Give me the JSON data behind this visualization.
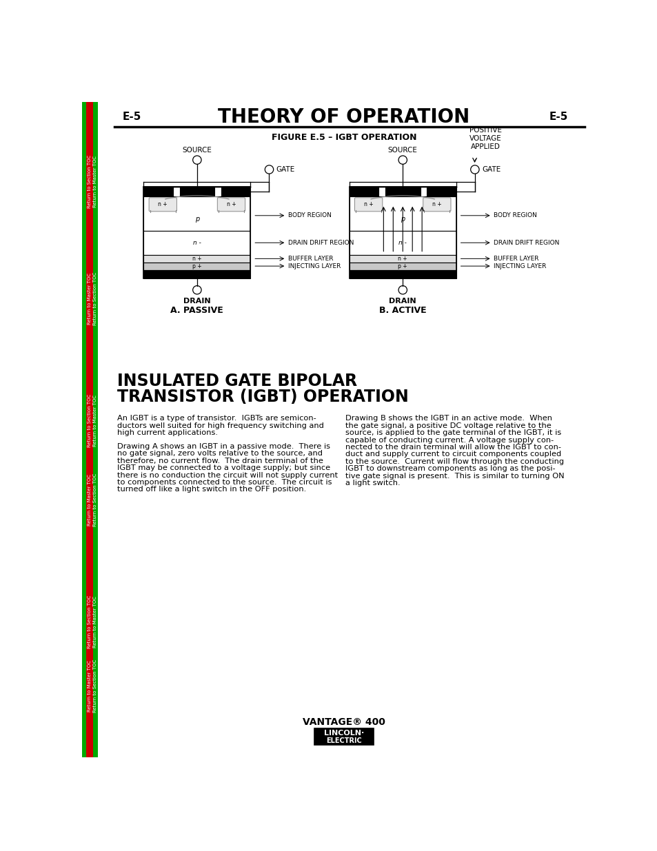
{
  "bg_color": "#ffffff",
  "page_width": 9.54,
  "page_height": 12.35,
  "header_title": "THEORY OF OPERATION",
  "header_left": "E-5",
  "header_right": "E-5",
  "figure_title": "FIGURE E.5 – IGBT OPERATION",
  "section_title_line1": "INSULATED GATE BIPOLAR",
  "section_title_line2": "TRANSISTOR (IGBT) OPERATION",
  "para1_left": "An IGBT is a type of transistor.  IGBTs are semicon-\nductors well suited for high frequency switching and\nhigh current applications.",
  "para2_left": "Drawing A shows an IGBT in a passive mode.  There is\nno gate signal, zero volts relative to the source, and\ntherefore, no current flow.  The drain terminal of the\nIGBT may be connected to a voltage supply; but since\nthere is no conduction the circuit will not supply current\nto components connected to the source.  The circuit is\nturned off like a light switch in the OFF position.",
  "para1_right": "Drawing B shows the IGBT in an active mode.  When\nthe gate signal, a positive DC voltage relative to the\nsource, is applied to the gate terminal of the IGBT, it is\ncapable of conducting current. A voltage supply con-\nnected to the drain terminal will allow the IGBT to con-\nduct and supply current to circuit components coupled\nto the source.  Current will flow through the conducting\nIGBT to downstream components as long as the posi-\ntive gate signal is present.  This is similar to turning ON\na light switch.",
  "footer_brand": "VANTAGE® 400",
  "diagram_a_label": "A. PASSIVE",
  "diagram_b_label": "B. ACTIVE",
  "label_body_region": "BODY REGION",
  "label_drain_drift": "DRAIN DRIFT REGION",
  "label_buffer_layer": "BUFFER LAYER",
  "label_injecting_layer": "INJECTING LAYER",
  "label_source": "SOURCE",
  "label_gate": "GATE",
  "label_drain": "DRAIN",
  "label_pos_voltage": "POSITIVE\nVOLTAGE\nAPPLIED"
}
